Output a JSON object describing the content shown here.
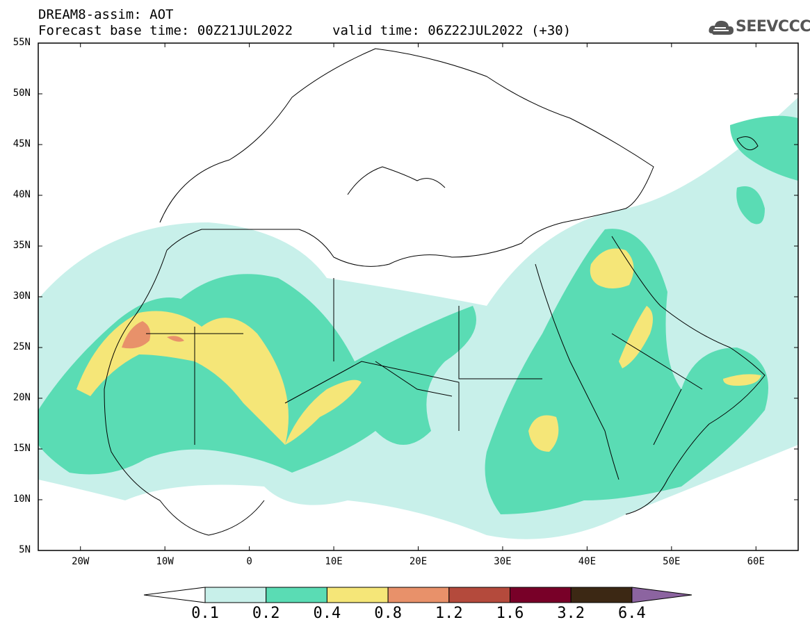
{
  "header": {
    "model_line": "DREAM8-assim: AOT",
    "base_time": "Forecast base time: 00Z21JUL2022",
    "valid_time": "valid time: 06Z22JUL2022 (+30)",
    "logo_text": "SEEVCCC"
  },
  "axes": {
    "lat_labels": [
      "55N",
      "50N",
      "45N",
      "40N",
      "35N",
      "30N",
      "25N",
      "20N",
      "15N",
      "10N",
      "5N"
    ],
    "lon_labels": [
      "20W",
      "10W",
      "0",
      "10E",
      "20E",
      "30E",
      "40E",
      "50E",
      "60E"
    ]
  },
  "legend": {
    "labels": [
      "0.1",
      "0.2",
      "0.4",
      "0.8",
      "1.2",
      "1.6",
      "3.2",
      "6.4"
    ],
    "colors": [
      "#ffffff",
      "#c8f0ea",
      "#5adcb4",
      "#f5e678",
      "#e8916a",
      "#b44a3c",
      "#780028",
      "#3c2814",
      "#8c64a0"
    ]
  },
  "chart_data": {
    "type": "heatmap",
    "variable": "AOT",
    "levels": [
      0.1,
      0.2,
      0.4,
      0.8,
      1.2,
      1.6,
      3.2,
      6.4
    ],
    "lon_range": [
      -25,
      65
    ],
    "lat_range": [
      5,
      55
    ]
  }
}
